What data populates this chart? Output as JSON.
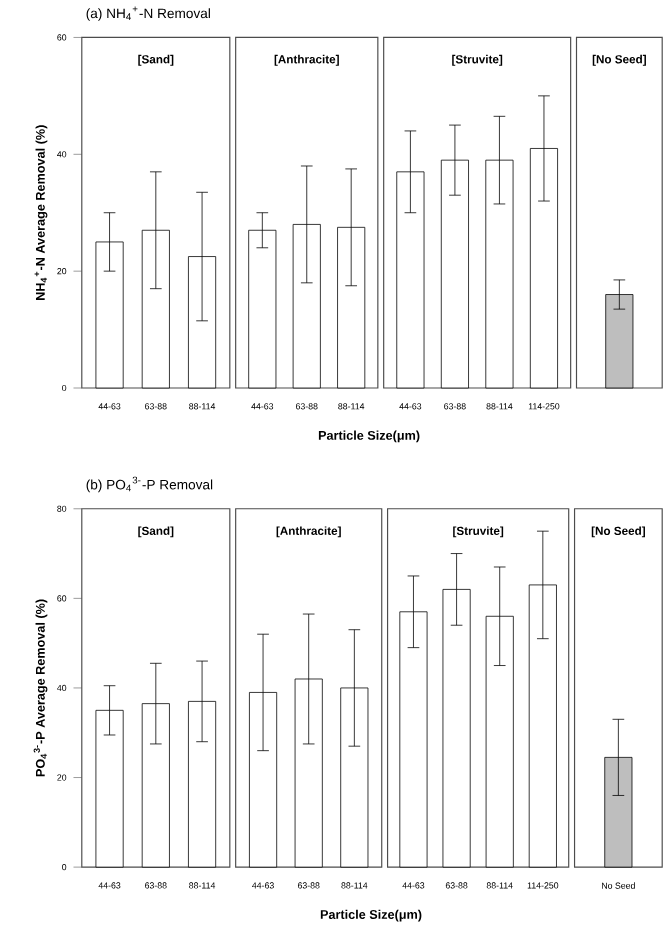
{
  "chart_data": [
    {
      "type": "bar",
      "title": "(a) NH$_{4}$$^{+}$-N Removal",
      "ylabel": "NH$_{4}$$^{+}$-N Average Removal (%)",
      "categories": [
        "44-63",
        "63-88",
        "88-114"
      ],
      "values": [
        25,
        27,
        22.5
      ],
      "errors": [
        5,
        10,
        11
      ],
      "color": "#ffffff",
      "ylim": [
        0,
        60
      ],
      "yticks": [
        0,
        20,
        40,
        60
      ],
      "annotations": [
        "[Sand]"
      ]
    },
    {
      "type": "bar",
      "xlabel": "Particle Size(μm)",
      "categories": [
        "44-63",
        "63-88",
        "88-114"
      ],
      "values": [
        27,
        28,
        27.5
      ],
      "errors": [
        3,
        10,
        10
      ],
      "color": "#ffffff",
      "ylim": [
        0,
        60
      ],
      "tick_labels": "x",
      "annotations": [
        "[Anthracite]"
      ]
    },
    {
      "type": "bar",
      "categories": [
        "44-63",
        "63-88",
        "88-114",
        "114-250"
      ],
      "values": [
        37,
        39,
        39,
        41
      ],
      "errors": [
        7,
        6,
        7.5,
        9
      ],
      "color": "#ffffff",
      "ylim": [
        0,
        60
      ],
      "tick_labels": "x",
      "annotations": [
        "[Struvite]"
      ]
    },
    {
      "type": "bar",
      "categories": [
        null
      ],
      "values": [
        16
      ],
      "errors": [
        2.5
      ],
      "color": "#bebebe",
      "ylim": [
        0,
        60
      ],
      "tick_labels": false,
      "annotations": [
        "[No Seed]"
      ]
    },
    {
      "type": "bar",
      "title": "(b) PO$_{4}$$^{3-}$-P Removal",
      "ylabel": "PO$_{4}$$^{3-}$-P Average Removal (%)",
      "categories": [
        "44-63",
        "63-88",
        "88-114"
      ],
      "values": [
        35,
        36.5,
        37
      ],
      "errors": [
        5.5,
        9,
        9
      ],
      "color": "#ffffff",
      "ylim": [
        0,
        80
      ],
      "yticks": [
        0,
        20,
        40,
        60,
        80
      ],
      "annotations": [
        "[Sand]"
      ]
    },
    {
      "type": "bar",
      "xlabel": "Particle Size(μm)",
      "categories": [
        "44-63",
        "63-88",
        "88-114"
      ],
      "values": [
        39,
        42,
        40
      ],
      "errors": [
        13,
        14.5,
        13
      ],
      "color": "#ffffff",
      "ylim": [
        0,
        80
      ],
      "tick_labels": "x",
      "annotations": [
        "[Anthracite]"
      ]
    },
    {
      "type": "bar",
      "categories": [
        "44-63",
        "63-88",
        "88-114",
        "114-250"
      ],
      "values": [
        57,
        62,
        56,
        63
      ],
      "errors": [
        8,
        8,
        11,
        12
      ],
      "color": "#ffffff",
      "ylim": [
        0,
        80
      ],
      "tick_labels": "x",
      "annotations": [
        "[Struvite]"
      ]
    },
    {
      "type": "bar",
      "categories": [
        "No Seed"
      ],
      "values": [
        24.5
      ],
      "errors": [
        8.5
      ],
      "color": "#bebebe",
      "ylim": [
        0,
        80
      ],
      "tick_labels": "x",
      "annotations": [
        "[No Seed]"
      ]
    }
  ]
}
